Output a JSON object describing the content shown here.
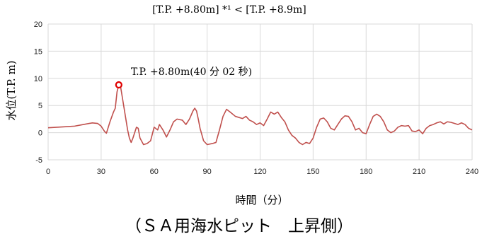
{
  "header": {
    "text": "[T.P. +8.80m] *¹ < [T.P. +8.9m]"
  },
  "footer": {
    "caption": "（ＳＡ用海水ピット　上昇側）"
  },
  "chart_data": {
    "type": "line",
    "title": "",
    "xlabel": "時間（分）",
    "ylabel": "水位(T.P. m)",
    "xlim": [
      0,
      240
    ],
    "ylim": [
      -5,
      20
    ],
    "xticks": [
      0,
      30,
      60,
      90,
      120,
      150,
      180,
      210,
      240
    ],
    "yticks": [
      -5,
      0,
      5,
      10,
      15,
      20
    ],
    "grid": true,
    "line_color": "#c0504d",
    "marker_color": "#e00000",
    "series": [
      {
        "name": "",
        "points": [
          [
            0,
            0.9
          ],
          [
            5,
            1.0
          ],
          [
            10,
            1.1
          ],
          [
            15,
            1.2
          ],
          [
            20,
            1.5
          ],
          [
            25,
            1.8
          ],
          [
            28,
            1.7
          ],
          [
            30,
            1.2
          ],
          [
            32,
            0.2
          ],
          [
            33,
            -0.1
          ],
          [
            35,
            2.0
          ],
          [
            37,
            3.8
          ],
          [
            38,
            4.5
          ],
          [
            39,
            7.5
          ],
          [
            40,
            8.8
          ],
          [
            41,
            8.5
          ],
          [
            42,
            6.5
          ],
          [
            44,
            2.5
          ],
          [
            45,
            0.5
          ],
          [
            46,
            -1.0
          ],
          [
            47,
            -1.8
          ],
          [
            48,
            -1.0
          ],
          [
            50,
            1.0
          ],
          [
            51,
            0.8
          ],
          [
            52,
            -1.0
          ],
          [
            54,
            -2.2
          ],
          [
            56,
            -2.0
          ],
          [
            58,
            -1.5
          ],
          [
            60,
            1.0
          ],
          [
            62,
            0.5
          ],
          [
            63,
            1.5
          ],
          [
            64,
            1.0
          ],
          [
            65,
            0.5
          ],
          [
            67,
            -0.8
          ],
          [
            69,
            0.5
          ],
          [
            71,
            2.0
          ],
          [
            73,
            2.5
          ],
          [
            76,
            2.3
          ],
          [
            78,
            1.5
          ],
          [
            80,
            2.5
          ],
          [
            82,
            4.0
          ],
          [
            83,
            4.5
          ],
          [
            84,
            4.0
          ],
          [
            85,
            2.5
          ],
          [
            86,
            0.8
          ],
          [
            88,
            -1.5
          ],
          [
            90,
            -2.2
          ],
          [
            93,
            -2.0
          ],
          [
            95,
            -1.8
          ],
          [
            97,
            0.5
          ],
          [
            99,
            3.0
          ],
          [
            101,
            4.3
          ],
          [
            103,
            3.8
          ],
          [
            106,
            3.0
          ],
          [
            110,
            2.6
          ],
          [
            112,
            3.0
          ],
          [
            114,
            2.3
          ],
          [
            116,
            2.0
          ],
          [
            118,
            1.5
          ],
          [
            120,
            1.8
          ],
          [
            122,
            1.3
          ],
          [
            124,
            2.5
          ],
          [
            126,
            3.8
          ],
          [
            128,
            3.4
          ],
          [
            130,
            3.8
          ],
          [
            132,
            2.8
          ],
          [
            134,
            2.0
          ],
          [
            136,
            0.5
          ],
          [
            138,
            -0.5
          ],
          [
            140,
            -1.0
          ],
          [
            142,
            -1.8
          ],
          [
            144,
            -2.2
          ],
          [
            146,
            -1.8
          ],
          [
            148,
            -2.0
          ],
          [
            150,
            -1.0
          ],
          [
            152,
            1.0
          ],
          [
            154,
            2.5
          ],
          [
            156,
            2.7
          ],
          [
            158,
            2.0
          ],
          [
            160,
            0.8
          ],
          [
            162,
            0.5
          ],
          [
            164,
            1.5
          ],
          [
            166,
            2.5
          ],
          [
            168,
            3.1
          ],
          [
            170,
            3.0
          ],
          [
            172,
            2.0
          ],
          [
            174,
            0.5
          ],
          [
            176,
            0.8
          ],
          [
            178,
            0.0
          ],
          [
            180,
            -0.2
          ],
          [
            182,
            1.5
          ],
          [
            184,
            3.0
          ],
          [
            186,
            3.4
          ],
          [
            188,
            3.0
          ],
          [
            190,
            2.0
          ],
          [
            192,
            0.5
          ],
          [
            194,
            0.0
          ],
          [
            196,
            0.3
          ],
          [
            198,
            1.0
          ],
          [
            200,
            1.3
          ],
          [
            202,
            1.2
          ],
          [
            204,
            1.3
          ],
          [
            206,
            0.3
          ],
          [
            208,
            0.2
          ],
          [
            210,
            0.5
          ],
          [
            212,
            -0.2
          ],
          [
            214,
            0.8
          ],
          [
            216,
            1.3
          ],
          [
            218,
            1.5
          ],
          [
            220,
            1.8
          ],
          [
            222,
            2.0
          ],
          [
            224,
            1.6
          ],
          [
            226,
            2.0
          ],
          [
            228,
            1.9
          ],
          [
            230,
            1.7
          ],
          [
            232,
            1.5
          ],
          [
            234,
            1.8
          ],
          [
            236,
            1.5
          ],
          [
            238,
            0.8
          ],
          [
            240,
            0.5
          ]
        ]
      }
    ],
    "max_point": {
      "x": 40,
      "y": 8.8
    },
    "annotation": "T.P. +8.80m(40 分 02 秒)"
  }
}
